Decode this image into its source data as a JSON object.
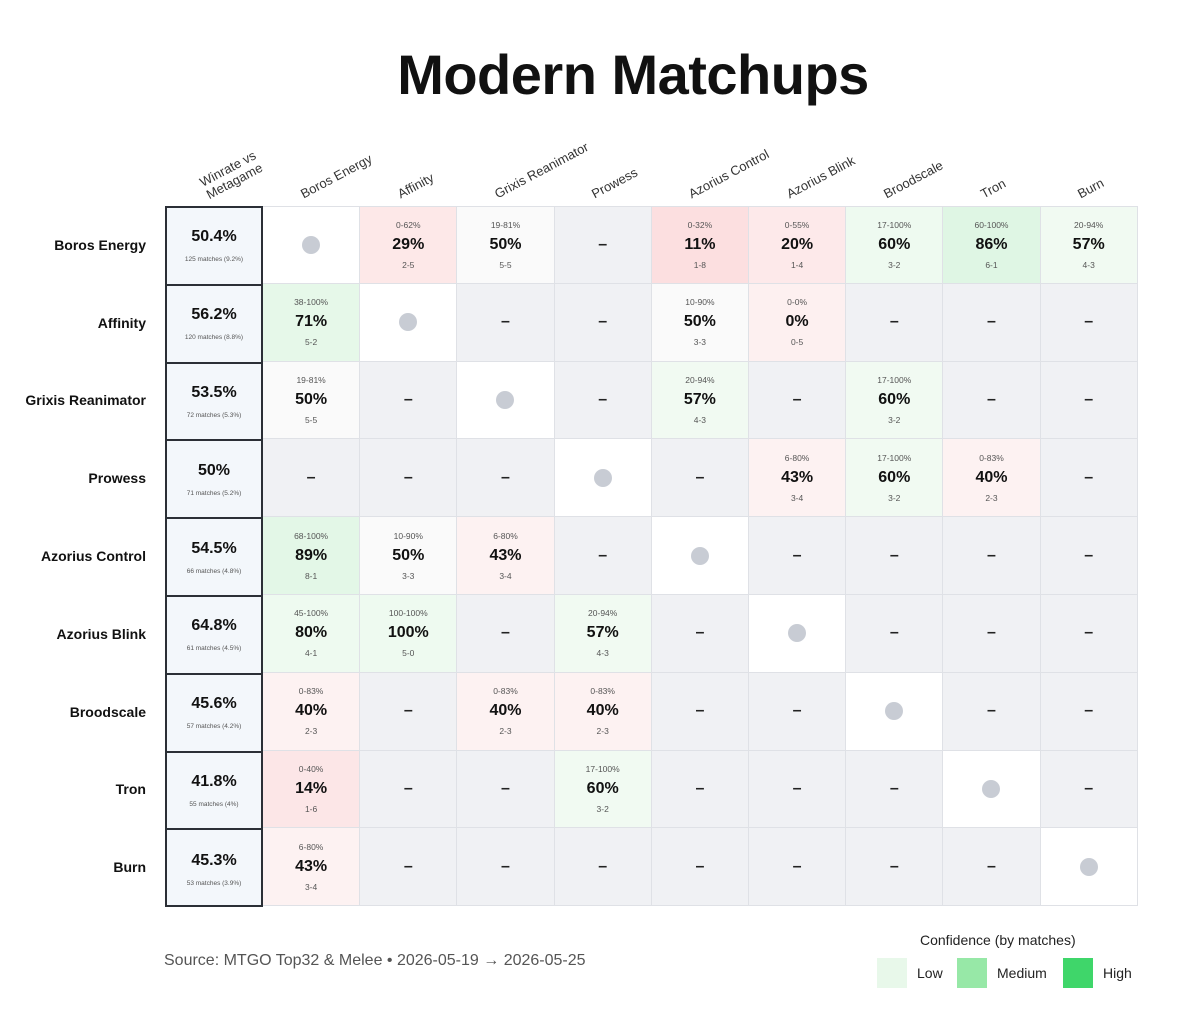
{
  "title": "Modern Matchups",
  "source": "Source: MTGO Top32 & Melee  •  2026-05-19 → 2026-05-25",
  "legend": {
    "title": "Confidence (by matches)",
    "items": [
      {
        "label": "Low",
        "color": "#e8f8ea"
      },
      {
        "label": "Medium",
        "color": "#97e8a7"
      },
      {
        "label": "High",
        "color": "#3fd66a"
      }
    ]
  },
  "chart_data": {
    "type": "heatmap",
    "title": "Modern Matchups",
    "winrate_header": "Winrate vs Metagame",
    "columns": [
      "Boros Energy",
      "Affinity",
      "Grixis Reanimator",
      "Prowess",
      "Azorius Control",
      "Azorius Blink",
      "Broodscale",
      "Tron",
      "Burn"
    ],
    "rows": [
      {
        "name": "Boros Energy",
        "winrate": "50.4%",
        "matches": "125 matches (9.2%)",
        "cells": [
          {
            "diag": true
          },
          {
            "pct": "29%",
            "range": "0-62%",
            "record": "2-5",
            "color": "#fde8e8"
          },
          {
            "pct": "50%",
            "range": "19-81%",
            "record": "5-5",
            "color": "#fafafa"
          },
          null,
          {
            "pct": "11%",
            "range": "0-32%",
            "record": "1-8",
            "color": "#fcdfe0"
          },
          {
            "pct": "20%",
            "range": "0-55%",
            "record": "1-4",
            "color": "#fde9ea"
          },
          {
            "pct": "60%",
            "range": "17-100%",
            "record": "3-2",
            "color": "#eefaf0"
          },
          {
            "pct": "86%",
            "range": "60-100%",
            "record": "6-1",
            "color": "#dff6e4"
          },
          {
            "pct": "57%",
            "range": "20-94%",
            "record": "4-3",
            "color": "#f1faf2"
          }
        ]
      },
      {
        "name": "Affinity",
        "winrate": "56.2%",
        "matches": "120 matches (8.8%)",
        "cells": [
          {
            "pct": "71%",
            "range": "38-100%",
            "record": "5-2",
            "color": "#e6f8e9"
          },
          {
            "diag": true
          },
          null,
          null,
          {
            "pct": "50%",
            "range": "10-90%",
            "record": "3-3",
            "color": "#fafafa"
          },
          {
            "pct": "0%",
            "range": "0-0%",
            "record": "0-5",
            "color": "#fdf0f0"
          },
          null,
          null,
          null
        ]
      },
      {
        "name": "Grixis Reanimator",
        "winrate": "53.5%",
        "matches": "72 matches (5.3%)",
        "cells": [
          {
            "pct": "50%",
            "range": "19-81%",
            "record": "5-5",
            "color": "#fafafa"
          },
          null,
          {
            "diag": true
          },
          null,
          {
            "pct": "57%",
            "range": "20-94%",
            "record": "4-3",
            "color": "#f1faf2"
          },
          null,
          {
            "pct": "60%",
            "range": "17-100%",
            "record": "3-2",
            "color": "#f1faf2"
          },
          null,
          null
        ]
      },
      {
        "name": "Prowess",
        "winrate": "50%",
        "matches": "71 matches (5.2%)",
        "cells": [
          null,
          null,
          null,
          {
            "diag": true
          },
          null,
          {
            "pct": "43%",
            "range": "6-80%",
            "record": "3-4",
            "color": "#fdf2f2"
          },
          {
            "pct": "60%",
            "range": "17-100%",
            "record": "3-2",
            "color": "#f1faf2"
          },
          {
            "pct": "40%",
            "range": "0-83%",
            "record": "2-3",
            "color": "#fdf2f2"
          },
          null
        ]
      },
      {
        "name": "Azorius Control",
        "winrate": "54.5%",
        "matches": "66 matches (4.8%)",
        "cells": [
          {
            "pct": "89%",
            "range": "68-100%",
            "record": "8-1",
            "color": "#e3f7e7"
          },
          {
            "pct": "50%",
            "range": "10-90%",
            "record": "3-3",
            "color": "#fafafa"
          },
          {
            "pct": "43%",
            "range": "6-80%",
            "record": "3-4",
            "color": "#fdf2f2"
          },
          null,
          {
            "diag": true
          },
          null,
          null,
          null,
          null
        ]
      },
      {
        "name": "Azorius Blink",
        "winrate": "64.8%",
        "matches": "61 matches (4.5%)",
        "cells": [
          {
            "pct": "80%",
            "range": "45-100%",
            "record": "4-1",
            "color": "#eefaf0"
          },
          {
            "pct": "100%",
            "range": "100-100%",
            "record": "5-0",
            "color": "#eefaf0"
          },
          null,
          {
            "pct": "57%",
            "range": "20-94%",
            "record": "4-3",
            "color": "#f1faf2"
          },
          null,
          {
            "diag": true
          },
          null,
          null,
          null
        ]
      },
      {
        "name": "Broodscale",
        "winrate": "45.6%",
        "matches": "57 matches (4.2%)",
        "cells": [
          {
            "pct": "40%",
            "range": "0-83%",
            "record": "2-3",
            "color": "#fdf2f2"
          },
          null,
          {
            "pct": "40%",
            "range": "0-83%",
            "record": "2-3",
            "color": "#fdf2f2"
          },
          {
            "pct": "40%",
            "range": "0-83%",
            "record": "2-3",
            "color": "#fdf2f2"
          },
          null,
          null,
          {
            "diag": true
          },
          null,
          null
        ]
      },
      {
        "name": "Tron",
        "winrate": "41.8%",
        "matches": "55 matches (4%)",
        "cells": [
          {
            "pct": "14%",
            "range": "0-40%",
            "record": "1-6",
            "color": "#fce6e7"
          },
          null,
          null,
          {
            "pct": "60%",
            "range": "17-100%",
            "record": "3-2",
            "color": "#f1faf2"
          },
          null,
          null,
          null,
          {
            "diag": true
          },
          null
        ]
      },
      {
        "name": "Burn",
        "winrate": "45.3%",
        "matches": "53 matches (3.9%)",
        "cells": [
          {
            "pct": "43%",
            "range": "6-80%",
            "record": "3-4",
            "color": "#fdf2f2"
          },
          null,
          null,
          null,
          null,
          null,
          null,
          null,
          {
            "diag": true
          }
        ]
      }
    ]
  }
}
